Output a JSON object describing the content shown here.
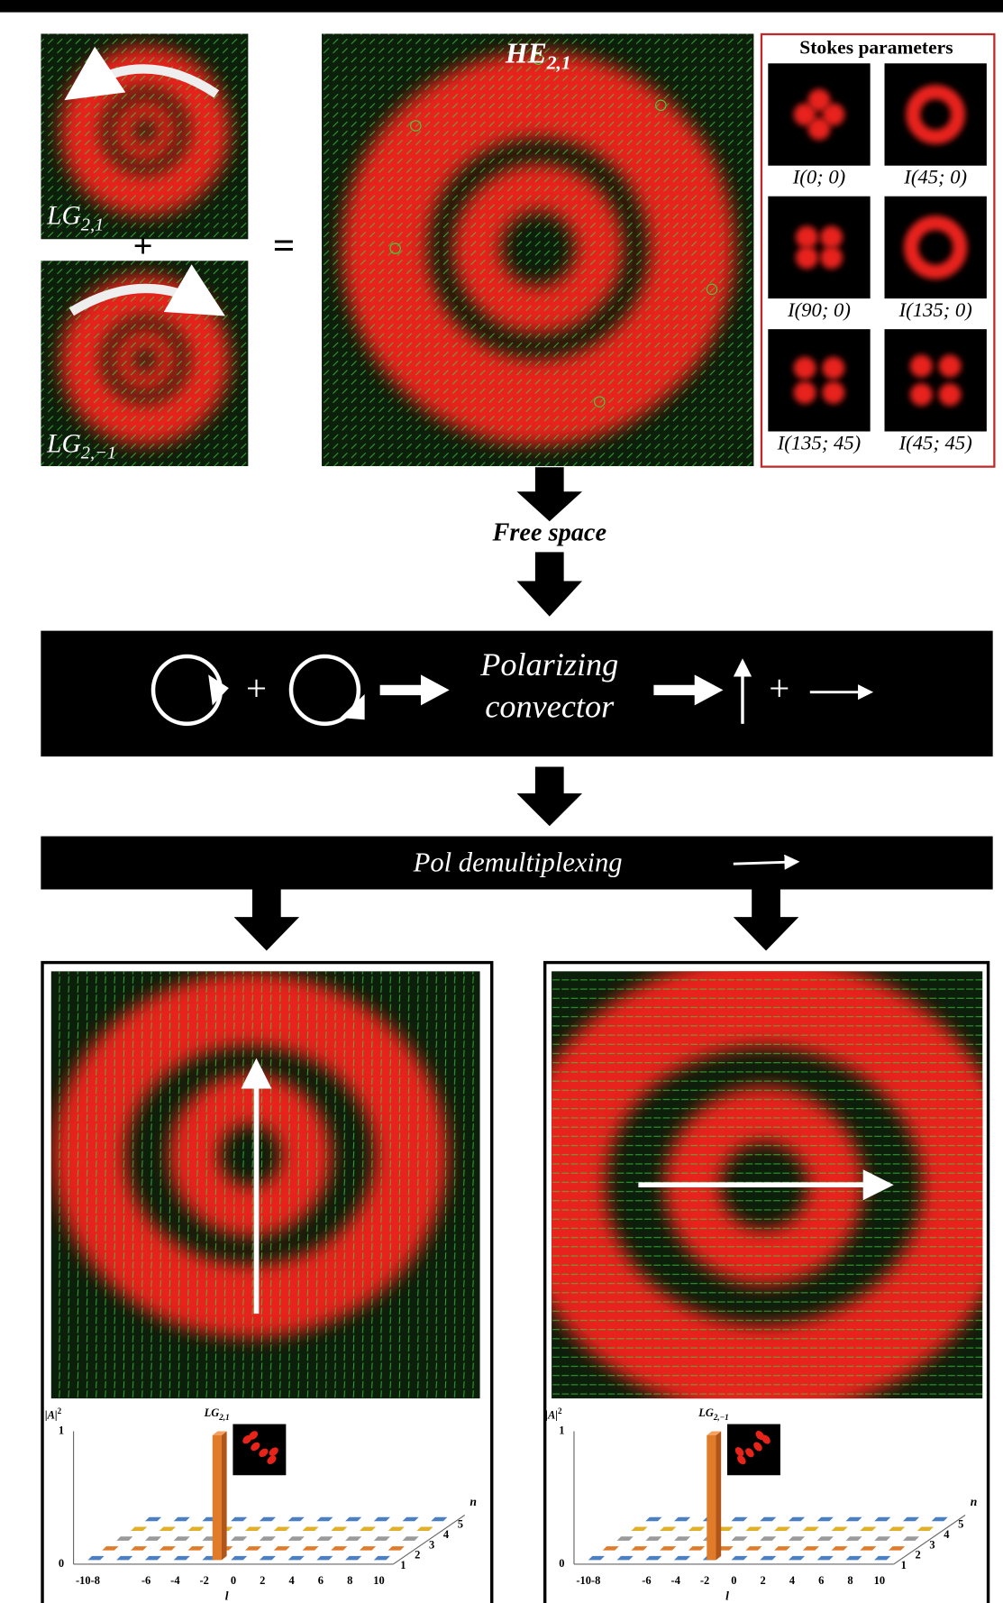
{
  "input_beams": [
    {
      "label": "LG",
      "subscript": "2,1"
    },
    {
      "label": "LG",
      "subscript": "2,−1"
    }
  ],
  "plus": "+",
  "equals": "=",
  "combined_beam": {
    "label": "HE",
    "subscript": "2,1"
  },
  "stokes": {
    "title": "Stokes parameters",
    "images": [
      {
        "label": "I(0; 0)"
      },
      {
        "label": "I(45; 0)"
      },
      {
        "label": "I(90; 0)"
      },
      {
        "label": "I(135; 0)"
      },
      {
        "label": "I(135; 45)"
      },
      {
        "label": "I(45; 45)"
      }
    ]
  },
  "free_space": "Free space",
  "converter": {
    "plus_left": "+",
    "text_line1": "Polarizing",
    "text_line2": "convector",
    "plus_right": "+"
  },
  "demux": "Pol demultiplexing",
  "outputs": [
    {
      "mode_label": "LG",
      "mode_subscript": "2,1",
      "y_label": "|A|",
      "y_label_sup": "2",
      "x_label": "l",
      "depth_label": "n",
      "y_ticks": [
        0,
        1
      ],
      "x_ticks": [
        "-10-8",
        -6,
        -4,
        -2,
        0,
        2,
        4,
        6,
        8,
        10
      ],
      "depth_ticks": [
        1,
        2,
        3,
        4,
        5
      ]
    },
    {
      "mode_label": "LG",
      "mode_subscript": "2,−1",
      "y_label": "|A|",
      "y_label_sup": "2",
      "x_label": "l",
      "depth_label": "n",
      "y_ticks": [
        0,
        1
      ],
      "x_ticks": [
        "-10-8",
        -6,
        -4,
        -2,
        0,
        2,
        4,
        6,
        8,
        10
      ],
      "depth_ticks": [
        1,
        2,
        3,
        4,
        5
      ]
    }
  ]
}
